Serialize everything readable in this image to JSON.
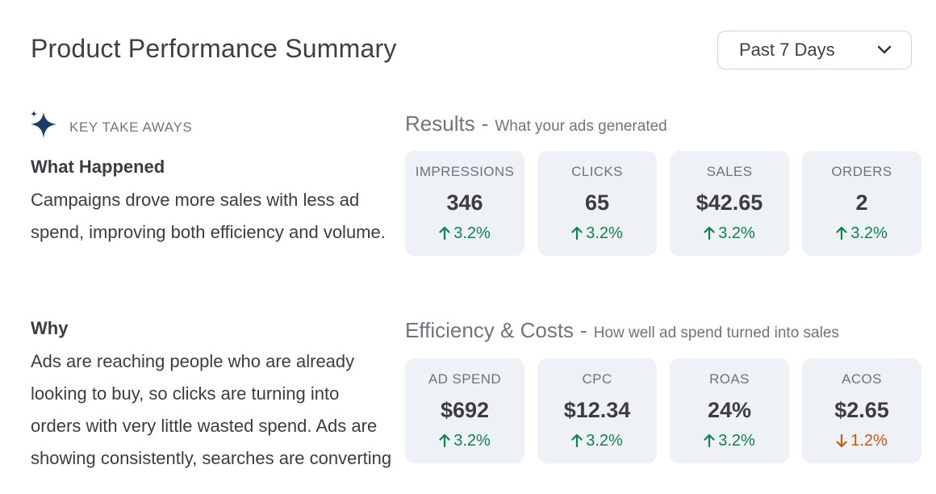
{
  "header": {
    "title": "Product Performance Summary",
    "date_range": {
      "selected": "Past 7 Days",
      "icon": "chevron-down-icon"
    }
  },
  "takeaways": {
    "icon": "sparkle-icon",
    "icon_color": "#1f3a68",
    "label": "KEY TAKE AWAYS",
    "what_happened": {
      "heading": "What Happened",
      "text": "Campaigns drove more sales with less ad spend, improving both efficiency and volume."
    },
    "why": {
      "heading": "Why",
      "text": "Ads are reaching people who are already looking to buy, so clicks are turning into orders with very little wasted spend. Ads are showing consistently, searches are converting"
    }
  },
  "results": {
    "title": "Results",
    "subtitle": "What your ads generated",
    "metrics": [
      {
        "label": "IMPRESSIONS",
        "value": "346",
        "change": "3.2%",
        "direction": "up"
      },
      {
        "label": "CLICKS",
        "value": "65",
        "change": "3.2%",
        "direction": "up"
      },
      {
        "label": "SALES",
        "value": "$42.65",
        "change": "3.2%",
        "direction": "up"
      },
      {
        "label": "ORDERS",
        "value": "2",
        "change": "3.2%",
        "direction": "up"
      }
    ]
  },
  "efficiency": {
    "title": "Efficiency & Costs",
    "subtitle": "How well ad spend turned into sales",
    "metrics": [
      {
        "label": "AD SPEND",
        "value": "$692",
        "change": "3.2%",
        "direction": "up"
      },
      {
        "label": "CPC",
        "value": "$12.34",
        "change": "3.2%",
        "direction": "up"
      },
      {
        "label": "ROAS",
        "value": "24%",
        "change": "3.2%",
        "direction": "up"
      },
      {
        "label": "ACOS",
        "value": "$2.65",
        "change": "1.2%",
        "direction": "down"
      }
    ]
  },
  "colors": {
    "positive": "#11824a",
    "negative": "#c75a12",
    "card_background": "#eef1f5"
  }
}
